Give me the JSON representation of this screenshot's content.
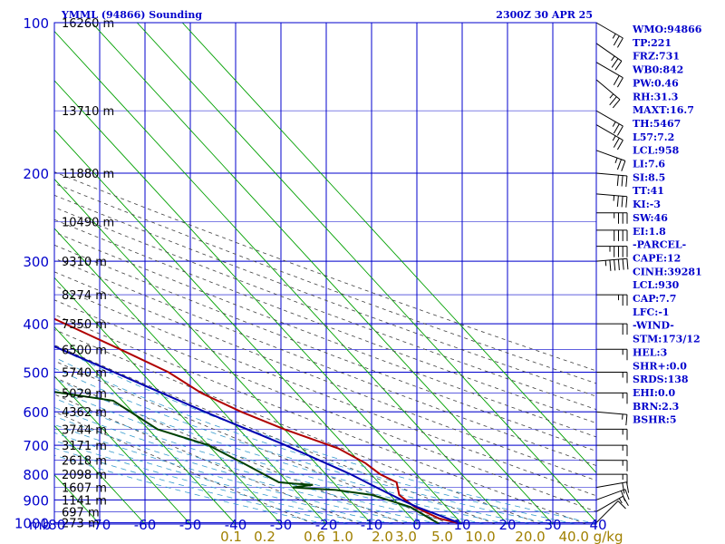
{
  "header": {
    "title": "YMML (94866) Sounding",
    "time": "2300Z 30 APR 25"
  },
  "indices": [
    "WMO:94866",
    "TP:221",
    "FRZ:731",
    "WB0:842",
    "PW:0.46",
    "RH:31.3",
    "MAXT:16.7",
    "TH:5467",
    "L57:7.2",
    "LCL:958",
    "LI:7.6",
    "SI:8.5",
    "TT:41",
    "KI:-3",
    "SW:46",
    "EI:1.8",
    "-PARCEL-",
    "CAPE:12",
    "CINH:39281",
    "LCL:930",
    "CAP:7.7",
    "LFC:-1",
    "-WIND-",
    "STM:173/12",
    "HEL:3",
    "SHR+:0.0",
    "SRDS:138",
    "EHI:0.0",
    "BRN:2.3",
    "BSHR:5"
  ],
  "chart_data": {
    "type": "line",
    "title": "YMML (94866) Sounding",
    "x_axis_unit": "mb",
    "temperature_ticks": [
      -80,
      -70,
      -60,
      -50,
      -40,
      -30,
      -20,
      -10,
      0,
      10,
      20,
      30,
      40
    ],
    "temperature_tick_labels": [
      "-80",
      "-70",
      "-60",
      "-50",
      "-40",
      "-30",
      "-20",
      "-10",
      "0",
      "10",
      "20",
      "30",
      "40"
    ],
    "xlim": [
      -80,
      40
    ],
    "pressure_ticks": [
      100,
      200,
      300,
      400,
      500,
      600,
      700,
      800,
      900,
      1000
    ],
    "pressure_tick_labels": [
      "100",
      "200",
      "300",
      "400",
      "500",
      "600",
      "700",
      "800",
      "900",
      "1000"
    ],
    "ylim": [
      1000,
      100
    ],
    "y_scale": "log",
    "height_labels": [
      {
        "p": 100,
        "label": "16260 m"
      },
      {
        "p": 150,
        "label": "13710 m"
      },
      {
        "p": 200,
        "label": "11880 m"
      },
      {
        "p": 250,
        "label": "10490 m"
      },
      {
        "p": 300,
        "label": "9310 m"
      },
      {
        "p": 350,
        "label": "8274 m"
      },
      {
        "p": 400,
        "label": "7350 m"
      },
      {
        "p": 450,
        "label": "6500 m"
      },
      {
        "p": 500,
        "label": "5740 m"
      },
      {
        "p": 550,
        "label": "5029 m"
      },
      {
        "p": 600,
        "label": "4362 m"
      },
      {
        "p": 650,
        "label": "3744 m"
      },
      {
        "p": 700,
        "label": "3171 m"
      },
      {
        "p": 750,
        "label": "2618 m"
      },
      {
        "p": 800,
        "label": "2098 m"
      },
      {
        "p": 850,
        "label": "1607 m"
      },
      {
        "p": 900,
        "label": "1141 m"
      },
      {
        "p": 950,
        "label": "697 m"
      },
      {
        "p": 1000,
        "label": "273 m"
      }
    ],
    "mixing_ratio_labels": [
      "0.1",
      "0.2",
      "0.6",
      "1.0",
      "2.0",
      "3.0",
      "5.0",
      "10.0",
      "20.0",
      "40.0 g/kg"
    ],
    "mixing_ratio_values": [
      0.1,
      0.2,
      0.6,
      1.0,
      2.0,
      3.0,
      5.0,
      10.0,
      20.0,
      40.0
    ],
    "series": [
      {
        "color": "#b00000",
        "points": [
          {
            "p": 1006,
            "t": 10.0
          },
          {
            "p": 980,
            "t": 6.0
          },
          {
            "p": 930,
            "t": 3.0
          },
          {
            "p": 880,
            "t": 2.0
          },
          {
            "p": 830,
            "t": 4.0
          },
          {
            "p": 800,
            "t": 2.0
          },
          {
            "p": 760,
            "t": 1.0
          },
          {
            "p": 710,
            "t": -2.0
          },
          {
            "p": 650,
            "t": -10.0
          },
          {
            "p": 600,
            "t": -16.0
          },
          {
            "p": 550,
            "t": -21.0
          },
          {
            "p": 500,
            "t": -24.0
          },
          {
            "p": 450,
            "t": -30.0
          },
          {
            "p": 400,
            "t": -37.0
          },
          {
            "p": 350,
            "t": -45.0
          },
          {
            "p": 300,
            "t": -52.0
          },
          {
            "p": 250,
            "t": -58.0
          },
          {
            "p": 220,
            "t": -61.0
          },
          {
            "p": 200,
            "t": -60.0
          },
          {
            "p": 180,
            "t": -56.0
          },
          {
            "p": 160,
            "t": -56.5
          },
          {
            "p": 150,
            "t": -55.0
          },
          {
            "p": 140,
            "t": -58.0
          },
          {
            "p": 120,
            "t": -59.0
          },
          {
            "p": 100,
            "t": -60.0
          }
        ]
      },
      {
        "color": "#004000",
        "points": [
          {
            "p": 1006,
            "t": 5.0
          },
          {
            "p": 980,
            "t": 4.0
          },
          {
            "p": 930,
            "t": 2.0
          },
          {
            "p": 880,
            "t": -4.0
          },
          {
            "p": 860,
            "t": -11.0
          },
          {
            "p": 850,
            "t": -20.0
          },
          {
            "p": 840,
            "t": -15.0
          },
          {
            "p": 835,
            "t": -19.0
          },
          {
            "p": 830,
            "t": -22.0
          },
          {
            "p": 760,
            "t": -26.0
          },
          {
            "p": 700,
            "t": -30.0
          },
          {
            "p": 650,
            "t": -38.0
          },
          {
            "p": 570,
            "t": -42.0
          },
          {
            "p": 540,
            "t": -57.0
          },
          {
            "p": 500,
            "t": -64.0
          },
          {
            "p": 480,
            "t": -66.0
          },
          {
            "p": 430,
            "t": -71.0
          },
          {
            "p": 400,
            "t": -75.0
          },
          {
            "p": 370,
            "t": -76.0
          },
          {
            "p": 330,
            "t": -82.0
          },
          {
            "p": 300,
            "t": -88.0
          },
          {
            "p": 250,
            "t": -105.0
          },
          {
            "p": 200,
            "t": -109.0
          }
        ]
      },
      {
        "color": "#0000b0",
        "points": [
          {
            "p": 1006,
            "t": 10.0
          },
          {
            "p": 930,
            "t": 3.5
          },
          {
            "p": 900,
            "t": 1.5
          },
          {
            "p": 850,
            "t": -1.5
          },
          {
            "p": 800,
            "t": -4.5
          },
          {
            "p": 700,
            "t": -13.0
          },
          {
            "p": 600,
            "t": -24.0
          },
          {
            "p": 500,
            "t": -36.0
          },
          {
            "p": 400,
            "t": -51.0
          },
          {
            "p": 300,
            "t": -70.0
          },
          {
            "p": 250,
            "t": -83.0
          }
        ]
      }
    ],
    "winds": [
      {
        "p": 1000,
        "dir": 225,
        "spd": 10
      },
      {
        "p": 950,
        "dir": 240,
        "spd": 15
      },
      {
        "p": 900,
        "dir": 250,
        "spd": 20
      },
      {
        "p": 850,
        "dir": 260,
        "spd": 20
      },
      {
        "p": 800,
        "dir": 270,
        "spd": 15
      },
      {
        "p": 750,
        "dir": 270,
        "spd": 15
      },
      {
        "p": 700,
        "dir": 270,
        "spd": 15
      },
      {
        "p": 650,
        "dir": 270,
        "spd": 15
      },
      {
        "p": 600,
        "dir": 275,
        "spd": 15
      },
      {
        "p": 550,
        "dir": 270,
        "spd": 15
      },
      {
        "p": 500,
        "dir": 270,
        "spd": 15
      },
      {
        "p": 450,
        "dir": 270,
        "spd": 15
      },
      {
        "p": 400,
        "dir": 270,
        "spd": 20
      },
      {
        "p": 350,
        "dir": 270,
        "spd": 25
      },
      {
        "p": 300,
        "dir": 265,
        "spd": 55
      },
      {
        "p": 280,
        "dir": 270,
        "spd": 45
      },
      {
        "p": 260,
        "dir": 270,
        "spd": 40
      },
      {
        "p": 240,
        "dir": 270,
        "spd": 35
      },
      {
        "p": 220,
        "dir": 275,
        "spd": 35
      },
      {
        "p": 200,
        "dir": 275,
        "spd": 30
      },
      {
        "p": 180,
        "dir": 290,
        "spd": 25
      },
      {
        "p": 160,
        "dir": 300,
        "spd": 25
      },
      {
        "p": 150,
        "dir": 300,
        "spd": 25
      },
      {
        "p": 130,
        "dir": 310,
        "spd": 25
      },
      {
        "p": 120,
        "dir": 300,
        "spd": 20
      },
      {
        "p": 110,
        "dir": 305,
        "spd": 25
      },
      {
        "p": 100,
        "dir": 300,
        "spd": 25
      }
    ]
  }
}
